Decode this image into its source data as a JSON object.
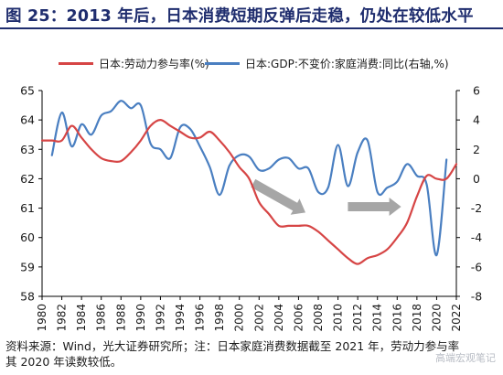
{
  "title": "图 25：2013 年后，日本消费短期反弹后走稳，仍处在较低水平",
  "source_note": "资料来源：Wind，光大证券研究所；注：日本家庭消费数据截至 2021 年，劳动力参与率",
  "source_note_line2": "其 2020 年读数较低。",
  "watermark": "高端宏观笔记",
  "colors": {
    "participation": "#d64545",
    "consumption": "#4a7fc1",
    "arrow": "#a6a6a6",
    "title": "#1f2d6e"
  },
  "chart_data": {
    "type": "line",
    "x_ticks": [
      "1980",
      "1982",
      "1984",
      "1986",
      "1988",
      "1990",
      "1992",
      "1994",
      "1996",
      "1998",
      "2000",
      "2002",
      "2004",
      "2006",
      "2008",
      "2010",
      "2012",
      "2014",
      "2016",
      "2018",
      "2020",
      "2022"
    ],
    "left_axis": {
      "ylim": [
        58,
        65
      ],
      "ticks": [
        "58",
        "59",
        "60",
        "61",
        "62",
        "63",
        "64",
        "65"
      ]
    },
    "right_axis": {
      "ylim": [
        -8,
        6
      ],
      "ticks": [
        "-8",
        "-6",
        "-4",
        "-2",
        "0",
        "2",
        "4",
        "6"
      ]
    },
    "series": [
      {
        "name": "日本:劳动力参与率(%)",
        "axis": "left",
        "x": [
          1980,
          1981,
          1982,
          1983,
          1984,
          1985,
          1986,
          1987,
          1988,
          1989,
          1990,
          1991,
          1992,
          1993,
          1994,
          1995,
          1996,
          1997,
          1998,
          1999,
          2000,
          2001,
          2002,
          2003,
          2004,
          2005,
          2006,
          2007,
          2008,
          2009,
          2010,
          2011,
          2012,
          2013,
          2014,
          2015,
          2016,
          2017,
          2018,
          2019,
          2020,
          2021,
          2022
        ],
        "values": [
          63.3,
          63.3,
          63.3,
          63.8,
          63.4,
          63.0,
          62.7,
          62.6,
          62.6,
          62.9,
          63.3,
          63.8,
          64.0,
          63.8,
          63.6,
          63.4,
          63.4,
          63.6,
          63.3,
          62.9,
          62.4,
          62.0,
          61.2,
          60.8,
          60.4,
          60.4,
          60.4,
          60.4,
          60.2,
          59.9,
          59.6,
          59.3,
          59.1,
          59.3,
          59.4,
          59.6,
          60.0,
          60.5,
          61.4,
          62.1,
          62.0,
          62.0,
          62.5
        ]
      },
      {
        "name": "日本:GDP:不变价:家庭消费:同比(右轴,%)",
        "axis": "right",
        "x": [
          1981,
          1982,
          1983,
          1984,
          1985,
          1986,
          1987,
          1988,
          1989,
          1990,
          1991,
          1992,
          1993,
          1994,
          1995,
          1996,
          1997,
          1998,
          1999,
          2000,
          2001,
          2002,
          2003,
          2004,
          2005,
          2006,
          2007,
          2008,
          2009,
          2010,
          2011,
          2012,
          2013,
          2014,
          2015,
          2016,
          2017,
          2018,
          2019,
          2020,
          2021
        ],
        "values": [
          1.6,
          4.5,
          2.2,
          3.7,
          3.0,
          4.3,
          4.6,
          5.3,
          4.8,
          5.0,
          2.4,
          2.0,
          1.4,
          3.5,
          3.4,
          2.2,
          0.8,
          -1.1,
          0.9,
          1.6,
          1.5,
          0.6,
          0.7,
          1.3,
          1.4,
          0.7,
          0.7,
          -0.9,
          -0.6,
          2.3,
          -0.5,
          1.8,
          2.6,
          -0.9,
          -0.6,
          -0.2,
          1.0,
          0.2,
          -0.4,
          -5.2,
          1.3
        ]
      }
    ],
    "arrows": [
      {
        "from": [
          2001.4,
          61.85
        ],
        "to": [
          2006.7,
          60.85
        ]
      },
      {
        "from": [
          2011.0,
          61.05
        ],
        "to": [
          2016.4,
          61.05
        ]
      }
    ]
  }
}
